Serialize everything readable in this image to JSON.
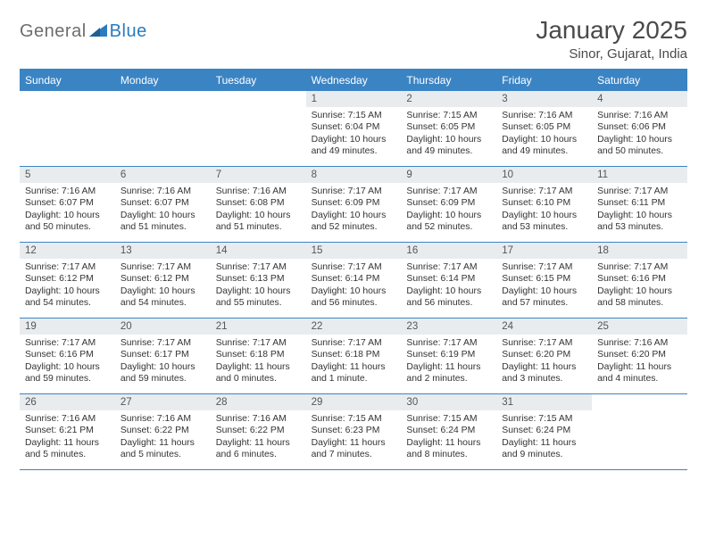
{
  "branding": {
    "text_general": "General",
    "text_blue": "Blue",
    "logo_fill": "#2a7bbf"
  },
  "header": {
    "month_title": "January 2025",
    "location": "Sinor, Gujarat, India"
  },
  "styling": {
    "header_bar_color": "#3b84c4",
    "header_text_color": "#ffffff",
    "daynum_bg": "#e9ecef",
    "divider_color": "#3b84c4",
    "body_text_color": "#333333",
    "page_bg": "#ffffff",
    "font_family": "Arial",
    "month_title_fontsize": 28,
    "location_fontsize": 15,
    "dow_fontsize": 12,
    "daynum_fontsize": 11.5,
    "cell_fontsize": 10.4
  },
  "days_of_week": [
    "Sunday",
    "Monday",
    "Tuesday",
    "Wednesday",
    "Thursday",
    "Friday",
    "Saturday"
  ],
  "weeks": [
    [
      {
        "day": "",
        "sunrise": "",
        "sunset": "",
        "daylight": ""
      },
      {
        "day": "",
        "sunrise": "",
        "sunset": "",
        "daylight": ""
      },
      {
        "day": "",
        "sunrise": "",
        "sunset": "",
        "daylight": ""
      },
      {
        "day": "1",
        "sunrise": "Sunrise: 7:15 AM",
        "sunset": "Sunset: 6:04 PM",
        "daylight": "Daylight: 10 hours and 49 minutes."
      },
      {
        "day": "2",
        "sunrise": "Sunrise: 7:15 AM",
        "sunset": "Sunset: 6:05 PM",
        "daylight": "Daylight: 10 hours and 49 minutes."
      },
      {
        "day": "3",
        "sunrise": "Sunrise: 7:16 AM",
        "sunset": "Sunset: 6:05 PM",
        "daylight": "Daylight: 10 hours and 49 minutes."
      },
      {
        "day": "4",
        "sunrise": "Sunrise: 7:16 AM",
        "sunset": "Sunset: 6:06 PM",
        "daylight": "Daylight: 10 hours and 50 minutes."
      }
    ],
    [
      {
        "day": "5",
        "sunrise": "Sunrise: 7:16 AM",
        "sunset": "Sunset: 6:07 PM",
        "daylight": "Daylight: 10 hours and 50 minutes."
      },
      {
        "day": "6",
        "sunrise": "Sunrise: 7:16 AM",
        "sunset": "Sunset: 6:07 PM",
        "daylight": "Daylight: 10 hours and 51 minutes."
      },
      {
        "day": "7",
        "sunrise": "Sunrise: 7:16 AM",
        "sunset": "Sunset: 6:08 PM",
        "daylight": "Daylight: 10 hours and 51 minutes."
      },
      {
        "day": "8",
        "sunrise": "Sunrise: 7:17 AM",
        "sunset": "Sunset: 6:09 PM",
        "daylight": "Daylight: 10 hours and 52 minutes."
      },
      {
        "day": "9",
        "sunrise": "Sunrise: 7:17 AM",
        "sunset": "Sunset: 6:09 PM",
        "daylight": "Daylight: 10 hours and 52 minutes."
      },
      {
        "day": "10",
        "sunrise": "Sunrise: 7:17 AM",
        "sunset": "Sunset: 6:10 PM",
        "daylight": "Daylight: 10 hours and 53 minutes."
      },
      {
        "day": "11",
        "sunrise": "Sunrise: 7:17 AM",
        "sunset": "Sunset: 6:11 PM",
        "daylight": "Daylight: 10 hours and 53 minutes."
      }
    ],
    [
      {
        "day": "12",
        "sunrise": "Sunrise: 7:17 AM",
        "sunset": "Sunset: 6:12 PM",
        "daylight": "Daylight: 10 hours and 54 minutes."
      },
      {
        "day": "13",
        "sunrise": "Sunrise: 7:17 AM",
        "sunset": "Sunset: 6:12 PM",
        "daylight": "Daylight: 10 hours and 54 minutes."
      },
      {
        "day": "14",
        "sunrise": "Sunrise: 7:17 AM",
        "sunset": "Sunset: 6:13 PM",
        "daylight": "Daylight: 10 hours and 55 minutes."
      },
      {
        "day": "15",
        "sunrise": "Sunrise: 7:17 AM",
        "sunset": "Sunset: 6:14 PM",
        "daylight": "Daylight: 10 hours and 56 minutes."
      },
      {
        "day": "16",
        "sunrise": "Sunrise: 7:17 AM",
        "sunset": "Sunset: 6:14 PM",
        "daylight": "Daylight: 10 hours and 56 minutes."
      },
      {
        "day": "17",
        "sunrise": "Sunrise: 7:17 AM",
        "sunset": "Sunset: 6:15 PM",
        "daylight": "Daylight: 10 hours and 57 minutes."
      },
      {
        "day": "18",
        "sunrise": "Sunrise: 7:17 AM",
        "sunset": "Sunset: 6:16 PM",
        "daylight": "Daylight: 10 hours and 58 minutes."
      }
    ],
    [
      {
        "day": "19",
        "sunrise": "Sunrise: 7:17 AM",
        "sunset": "Sunset: 6:16 PM",
        "daylight": "Daylight: 10 hours and 59 minutes."
      },
      {
        "day": "20",
        "sunrise": "Sunrise: 7:17 AM",
        "sunset": "Sunset: 6:17 PM",
        "daylight": "Daylight: 10 hours and 59 minutes."
      },
      {
        "day": "21",
        "sunrise": "Sunrise: 7:17 AM",
        "sunset": "Sunset: 6:18 PM",
        "daylight": "Daylight: 11 hours and 0 minutes."
      },
      {
        "day": "22",
        "sunrise": "Sunrise: 7:17 AM",
        "sunset": "Sunset: 6:18 PM",
        "daylight": "Daylight: 11 hours and 1 minute."
      },
      {
        "day": "23",
        "sunrise": "Sunrise: 7:17 AM",
        "sunset": "Sunset: 6:19 PM",
        "daylight": "Daylight: 11 hours and 2 minutes."
      },
      {
        "day": "24",
        "sunrise": "Sunrise: 7:17 AM",
        "sunset": "Sunset: 6:20 PM",
        "daylight": "Daylight: 11 hours and 3 minutes."
      },
      {
        "day": "25",
        "sunrise": "Sunrise: 7:16 AM",
        "sunset": "Sunset: 6:20 PM",
        "daylight": "Daylight: 11 hours and 4 minutes."
      }
    ],
    [
      {
        "day": "26",
        "sunrise": "Sunrise: 7:16 AM",
        "sunset": "Sunset: 6:21 PM",
        "daylight": "Daylight: 11 hours and 5 minutes."
      },
      {
        "day": "27",
        "sunrise": "Sunrise: 7:16 AM",
        "sunset": "Sunset: 6:22 PM",
        "daylight": "Daylight: 11 hours and 5 minutes."
      },
      {
        "day": "28",
        "sunrise": "Sunrise: 7:16 AM",
        "sunset": "Sunset: 6:22 PM",
        "daylight": "Daylight: 11 hours and 6 minutes."
      },
      {
        "day": "29",
        "sunrise": "Sunrise: 7:15 AM",
        "sunset": "Sunset: 6:23 PM",
        "daylight": "Daylight: 11 hours and 7 minutes."
      },
      {
        "day": "30",
        "sunrise": "Sunrise: 7:15 AM",
        "sunset": "Sunset: 6:24 PM",
        "daylight": "Daylight: 11 hours and 8 minutes."
      },
      {
        "day": "31",
        "sunrise": "Sunrise: 7:15 AM",
        "sunset": "Sunset: 6:24 PM",
        "daylight": "Daylight: 11 hours and 9 minutes."
      },
      {
        "day": "",
        "sunrise": "",
        "sunset": "",
        "daylight": ""
      }
    ]
  ]
}
